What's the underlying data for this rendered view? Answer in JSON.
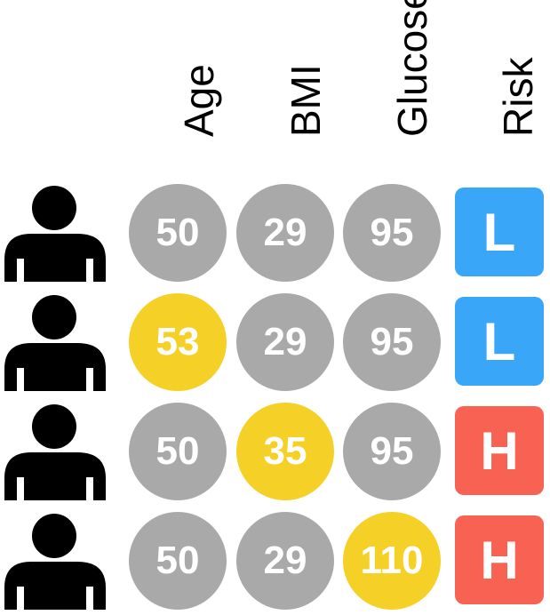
{
  "colors": {
    "normal": "#a8a9a8",
    "changed": "#f5d027",
    "low": "#3aa6f7",
    "high": "#f86252"
  },
  "headers": {
    "age": "Age",
    "bmi": "BMI",
    "glucose": "Glucose",
    "risk": "Risk"
  },
  "rows": [
    {
      "icon": "person-icon",
      "age": "50",
      "bmi": "29",
      "glucose": "95",
      "changed": "none",
      "risk": "L",
      "risk_level": "low"
    },
    {
      "icon": "person-icon",
      "age": "53",
      "bmi": "29",
      "glucose": "95",
      "changed": "age",
      "risk": "L",
      "risk_level": "low"
    },
    {
      "icon": "person-icon",
      "age": "50",
      "bmi": "35",
      "glucose": "95",
      "changed": "bmi",
      "risk": "H",
      "risk_level": "high"
    },
    {
      "icon": "person-icon",
      "age": "50",
      "bmi": "29",
      "glucose": "110",
      "changed": "glucose",
      "risk": "H",
      "risk_level": "high"
    }
  ]
}
